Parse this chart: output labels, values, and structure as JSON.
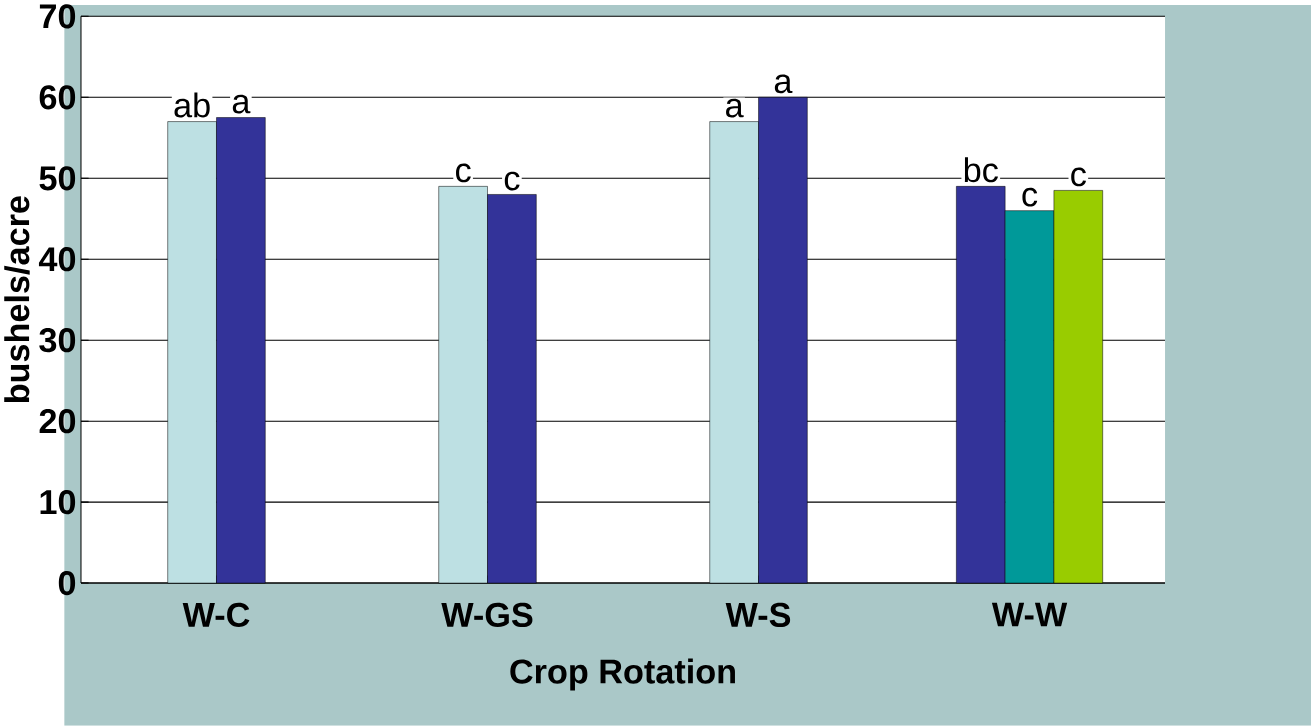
{
  "chart_data": {
    "type": "bar",
    "xlabel": "Crop Rotation",
    "ylabel": "bushels/acre",
    "categories": [
      "W-C",
      "W-GS",
      "W-S",
      "W-W"
    ],
    "series": [
      {
        "color": "#bde0e3",
        "values": [
          57,
          49,
          57,
          null
        ],
        "value_labels": [
          "ab",
          "c",
          "a",
          null
        ]
      },
      {
        "color": "#333399",
        "values": [
          57.5,
          48,
          60,
          49
        ],
        "value_labels": [
          "a",
          "c",
          "a",
          "bc"
        ]
      },
      {
        "color": "#009999",
        "values": [
          null,
          null,
          null,
          46
        ],
        "value_labels": [
          null,
          null,
          null,
          "c"
        ]
      },
      {
        "color": "#99cc00",
        "values": [
          null,
          null,
          null,
          48.5
        ],
        "value_labels": [
          null,
          null,
          null,
          "c"
        ]
      }
    ],
    "ylim": [
      0,
      70
    ],
    "yticks": [
      0,
      10,
      20,
      30,
      40,
      50,
      60,
      70
    ],
    "grid": "y"
  }
}
